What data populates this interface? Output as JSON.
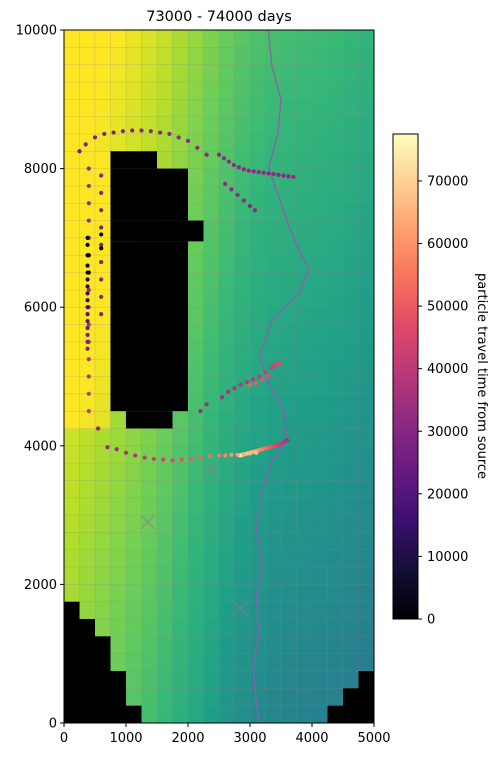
{
  "chart_data": {
    "type": "heatmap",
    "title": "73000 - 74000 days",
    "xlabel": "",
    "ylabel": "",
    "xlim": [
      0,
      5000
    ],
    "ylim": [
      0,
      10000
    ],
    "x_ticks": [
      "0",
      "1000",
      "2000",
      "3000",
      "4000",
      "5000"
    ],
    "y_ticks": [
      "0",
      "2000",
      "4000",
      "6000",
      "8000",
      "10000"
    ],
    "grid": false,
    "inactive_cell_color": "#000000",
    "river_color": "#8a5fb0",
    "colorbar": {
      "label": "particle travel time from source",
      "range": [
        0,
        77500
      ],
      "ticks": [
        "0",
        "10000",
        "20000",
        "30000",
        "40000",
        "50000",
        "60000",
        "70000"
      ],
      "colormap": "magma"
    },
    "particle_series": [
      {
        "travel_time": [
          31000,
          31000,
          31000,
          31000,
          31000,
          31000,
          31000,
          31000,
          31000,
          31000,
          31000,
          31000,
          31000,
          31000,
          31000,
          31000,
          31000,
          31000,
          31000,
          31000,
          31000,
          31000
        ],
        "x": [
          2500,
          2580,
          2660,
          2740,
          2820,
          2900,
          2980,
          3060,
          3140,
          3220,
          3300,
          3380,
          3460,
          3540,
          3620,
          3700,
          2600,
          2700,
          2800,
          2900,
          3000,
          3080
        ],
        "y": [
          8200,
          8150,
          8100,
          8050,
          8020,
          7990,
          7970,
          7960,
          7950,
          7940,
          7930,
          7920,
          7910,
          7900,
          7890,
          7880,
          7780,
          7700,
          7620,
          7540,
          7460,
          7400
        ]
      },
      {
        "travel_time": [
          33000,
          34000,
          35000,
          36000,
          37000,
          38000,
          39000,
          40000,
          41000,
          42000,
          43000,
          44000,
          45000,
          46000,
          47000,
          48000,
          49000,
          50000,
          51000
        ],
        "x": [
          2200,
          2300,
          2550,
          2650,
          2750,
          2850,
          2950,
          3050,
          3150,
          3250,
          3350,
          3380,
          3410,
          3440,
          3470,
          3300,
          3200,
          3100,
          3000
        ],
        "y": [
          4500,
          4600,
          4700,
          4780,
          4830,
          4880,
          4920,
          4960,
          5000,
          5060,
          5120,
          5150,
          5170,
          5180,
          5190,
          5000,
          4950,
          4900,
          4880
        ]
      },
      {
        "travel_time": [
          36000,
          38000,
          40000,
          42000,
          44000,
          46000,
          48000,
          50000,
          52000,
          54000,
          56000,
          58000,
          60000,
          62000,
          64000,
          66000,
          68000,
          70000,
          72000,
          74000
        ],
        "x": [
          3600,
          3560,
          3520,
          3480,
          3440,
          3400,
          3360,
          3320,
          3280,
          3240,
          3200,
          3160,
          3120,
          3080,
          3040,
          3000,
          2960,
          2920,
          2880,
          2840
        ],
        "y": [
          4080,
          4060,
          4040,
          4020,
          4010,
          4000,
          3990,
          3980,
          3970,
          3960,
          3950,
          3940,
          3930,
          3920,
          3910,
          3900,
          3890,
          3880,
          3870,
          3860
        ]
      },
      {
        "travel_time": [
          30000,
          32000,
          34000,
          36000,
          38000,
          40000,
          42000,
          44000,
          46000,
          48000,
          50000,
          52000,
          54000,
          56000,
          58000,
          60000,
          62000,
          64000,
          66000,
          68000
        ],
        "x": [
          550,
          700,
          850,
          1000,
          1150,
          1300,
          1450,
          1600,
          1750,
          1900,
          2050,
          2200,
          2350,
          2500,
          2600,
          2700,
          2800,
          2900,
          3000,
          3100
        ],
        "y": [
          4250,
          3980,
          3950,
          3900,
          3860,
          3830,
          3810,
          3800,
          3790,
          3800,
          3810,
          3830,
          3850,
          3860,
          3860,
          3870,
          3870,
          3880,
          3890,
          3900
        ]
      },
      {
        "travel_time": [
          26000,
          27000,
          27500,
          28000,
          28500,
          29000,
          29000,
          29500,
          30000,
          30000,
          30500,
          31000,
          31000,
          31500,
          32000,
          32000,
          32500,
          33000,
          33000,
          33500,
          34000,
          34500,
          35000,
          35500,
          36000,
          37000,
          38000,
          39000,
          40000,
          41000
        ],
        "x": [
          250,
          350,
          500,
          650,
          800,
          950,
          1100,
          1250,
          1400,
          1550,
          1700,
          1850,
          2000,
          2150,
          2300,
          400,
          400,
          400,
          400,
          400,
          400,
          400,
          400,
          400,
          400,
          400,
          400,
          400,
          400,
          400
        ],
        "y": [
          8250,
          8350,
          8450,
          8500,
          8520,
          8540,
          8550,
          8550,
          8540,
          8520,
          8500,
          8450,
          8400,
          8300,
          8200,
          8000,
          7750,
          7500,
          7250,
          7000,
          6750,
          6500,
          6250,
          6000,
          5750,
          5500,
          5250,
          5000,
          4750,
          4500
        ]
      },
      {
        "travel_time": [
          0,
          2000,
          4000,
          6000,
          8000,
          10000,
          12000,
          14000,
          16000,
          18000,
          20000,
          22000,
          24000,
          26000,
          28000,
          30000
        ],
        "x": [
          380,
          380,
          380,
          380,
          380,
          380,
          380,
          380,
          380,
          380,
          380,
          380,
          380,
          380,
          380,
          380
        ],
        "y": [
          7000,
          6900,
          6750,
          6600,
          6500,
          6400,
          6300,
          6200,
          6100,
          6000,
          5900,
          5800,
          5700,
          5600,
          5500,
          5400
        ]
      },
      {
        "travel_time": [
          28000,
          28000,
          28000,
          28000,
          28000,
          28000,
          28000,
          28000,
          28000
        ],
        "x": [
          600,
          600,
          600,
          600,
          600,
          600,
          600,
          600,
          600
        ],
        "y": [
          7900,
          7650,
          7400,
          7150,
          6900,
          6650,
          6400,
          6150,
          5900
        ]
      },
      {
        "travel_time": [
          0,
          0,
          0,
          0
        ],
        "x": [
          600,
          600,
          400,
          400
        ],
        "y": [
          7050,
          6850,
          6750,
          6500
        ]
      }
    ]
  }
}
